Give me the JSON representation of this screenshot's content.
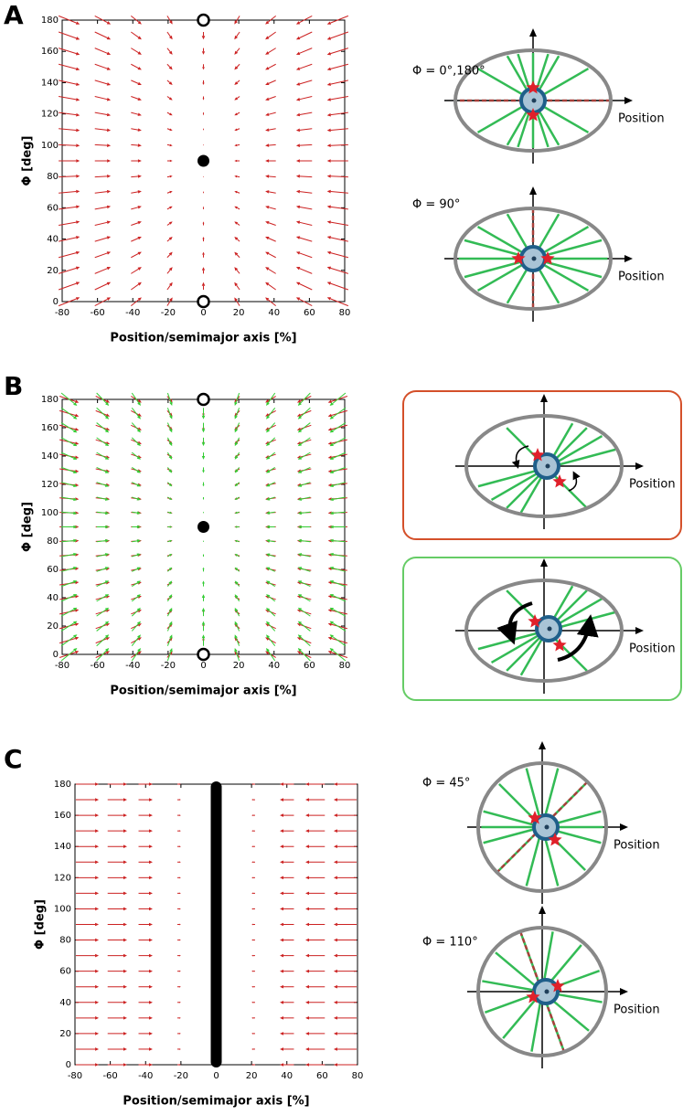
{
  "panels": [
    "A",
    "B",
    "C"
  ],
  "chart_data": [
    {
      "type": "quiver",
      "xlabel": "Position/semimajor axis [%]",
      "ylabel": "Φ [deg]",
      "xlim": [
        -80,
        80
      ],
      "ylim": [
        0,
        180
      ],
      "xticks": [
        -80,
        -60,
        -40,
        -20,
        0,
        20,
        40,
        60,
        80
      ],
      "yticks": [
        0,
        20,
        40,
        60,
        80,
        100,
        120,
        140,
        160,
        180
      ],
      "arrow_x": [
        -76,
        -57,
        -38,
        -19,
        0,
        19,
        38,
        57,
        76
      ],
      "arrow_y": [
        0,
        10,
        20,
        30,
        40,
        50,
        60,
        70,
        80,
        90,
        100,
        110,
        120,
        130,
        140,
        150,
        160,
        170,
        180
      ],
      "series": [
        {
          "color": "#cc2222",
          "u": [
            12,
            9,
            6,
            3,
            0,
            -3,
            -6,
            -9,
            -12
          ],
          "v": [
            5.4,
            4.8,
            4.2,
            3.6,
            3,
            2.4,
            1.8,
            1.2,
            0.6,
            0,
            -0.6,
            -1.2,
            -1.8,
            -2.4,
            -3,
            -3.6,
            -4.2,
            -4.8,
            -5.4
          ]
        }
      ],
      "stable_points": [
        [
          0,
          90
        ]
      ],
      "unstable_points": [
        [
          0,
          0
        ],
        [
          0,
          180
        ]
      ]
    },
    {
      "type": "quiver",
      "xlabel": "Position/semimajor axis [%]",
      "ylabel": "Φ [deg]",
      "xlim": [
        -80,
        80
      ],
      "ylim": [
        0,
        180
      ],
      "xticks": [
        -80,
        -60,
        -40,
        -20,
        0,
        20,
        40,
        60,
        80
      ],
      "yticks": [
        0,
        20,
        40,
        60,
        80,
        100,
        120,
        140,
        160,
        180
      ],
      "arrow_x": [
        -76,
        -57,
        -38,
        -19,
        0,
        19,
        38,
        57,
        76
      ],
      "arrow_y": [
        0,
        10,
        20,
        30,
        40,
        50,
        60,
        70,
        80,
        90,
        100,
        110,
        120,
        130,
        140,
        150,
        160,
        170,
        180
      ],
      "series": [
        {
          "color": "#cc2222",
          "u": [
            11,
            8,
            6,
            3,
            0,
            -3,
            -6,
            -8,
            -11
          ],
          "v": [
            4.5,
            4,
            3.5,
            3,
            2.5,
            2,
            1.5,
            1,
            0.5,
            0,
            -0.5,
            -1,
            -1.5,
            -2,
            -2.5,
            -3,
            -3.5,
            -4,
            -4.5
          ]
        },
        {
          "color": "#33cc33",
          "u": [
            9,
            7,
            5,
            2.5,
            0,
            -2.5,
            -5,
            -7,
            -9
          ],
          "v": [
            9,
            8,
            7,
            6,
            5,
            4,
            3,
            2,
            1,
            0,
            -1,
            -2,
            -3,
            -4,
            -5,
            -6,
            -7,
            -8,
            -9
          ]
        }
      ],
      "stable_points": [
        [
          0,
          90
        ]
      ],
      "unstable_points": [
        [
          0,
          0
        ],
        [
          0,
          180
        ]
      ]
    },
    {
      "type": "quiver",
      "xlabel": "Position/semimajor axis [%]",
      "ylabel": "Φ [deg]",
      "xlim": [
        -80,
        80
      ],
      "ylim": [
        0,
        180
      ],
      "xticks": [
        -80,
        -60,
        -40,
        -20,
        0,
        20,
        40,
        60,
        80
      ],
      "yticks": [
        0,
        20,
        40,
        60,
        80,
        100,
        120,
        140,
        160,
        180
      ],
      "arrow_x": [
        -73,
        -56,
        -40,
        -21,
        21,
        40,
        56,
        73
      ],
      "arrow_y": [
        0,
        10,
        20,
        30,
        40,
        50,
        60,
        70,
        80,
        90,
        100,
        110,
        120,
        130,
        140,
        150,
        160,
        170,
        180
      ],
      "series": [
        {
          "color": "#cc2222",
          "u": [
            13,
            11,
            8,
            2,
            -2,
            -8,
            -11,
            -13
          ],
          "v": [
            0,
            0,
            0,
            0,
            0,
            0,
            0,
            0,
            0,
            0,
            0,
            0,
            0,
            0,
            0,
            0,
            0,
            0,
            0
          ]
        }
      ],
      "fixed_line_x": 0
    }
  ],
  "diagrams": [
    {
      "title": "Φ = 0°,180°",
      "axis_label": "Position"
    },
    {
      "title": "Φ = 90°",
      "axis_label": "Position"
    },
    {
      "axis_label": "Position"
    },
    {
      "axis_label": "Position"
    },
    {
      "title": "Φ = 45°",
      "axis_label": "Position"
    },
    {
      "title": "Φ = 110°",
      "axis_label": "Position"
    }
  ]
}
